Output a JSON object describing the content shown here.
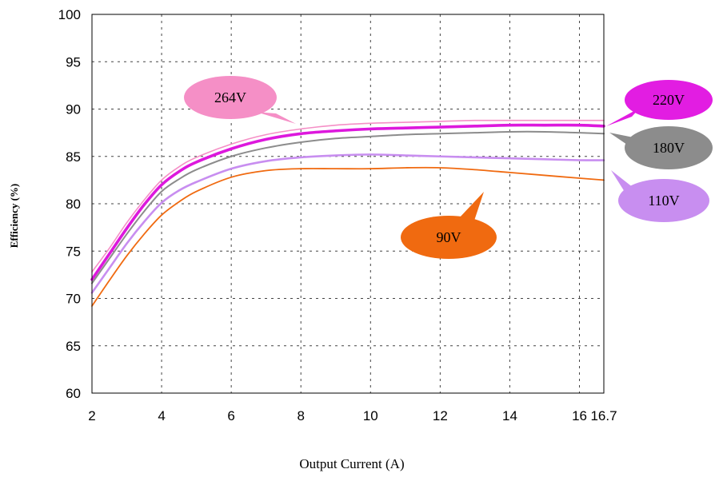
{
  "chart_data": {
    "type": "line",
    "title": "",
    "xlabel": "Output Current (A)",
    "ylabel": "Efficiency (%)",
    "xlim": [
      2,
      16.7
    ],
    "ylim": [
      60,
      100
    ],
    "x_ticks": [
      2,
      4,
      6,
      8,
      10,
      12,
      14,
      16,
      16.7
    ],
    "x_tick_labels": [
      "2",
      "4",
      "6",
      "8",
      "10",
      "12",
      "14",
      "16",
      "16.7"
    ],
    "y_ticks": [
      60,
      65,
      70,
      75,
      80,
      85,
      90,
      95,
      100
    ],
    "y_tick_labels": [
      "60",
      "65",
      "70",
      "75",
      "80",
      "85",
      "90",
      "95",
      "100"
    ],
    "grid": true,
    "series": [
      {
        "name": "264V",
        "color": "#f58fc6",
        "x": [
          2,
          2.5,
          3,
          3.5,
          4,
          4.5,
          5,
          6,
          7,
          8,
          9,
          10,
          11,
          12,
          13,
          14,
          15,
          16,
          16.7
        ],
        "y": [
          72.8,
          75.3,
          78.0,
          80.4,
          82.5,
          83.9,
          84.9,
          86.3,
          87.3,
          87.9,
          88.3,
          88.5,
          88.6,
          88.7,
          88.8,
          88.8,
          88.8,
          88.8,
          88.8
        ]
      },
      {
        "name": "220V",
        "color": "#dd18dd",
        "x": [
          2,
          2.5,
          3,
          3.5,
          4,
          4.5,
          5,
          6,
          7,
          8,
          9,
          10,
          11,
          12,
          13,
          14,
          15,
          16,
          16.7
        ],
        "y": [
          72.0,
          74.7,
          77.4,
          79.9,
          82.0,
          83.4,
          84.4,
          85.8,
          86.8,
          87.4,
          87.7,
          87.9,
          88.0,
          88.1,
          88.2,
          88.3,
          88.3,
          88.3,
          88.2
        ]
      },
      {
        "name": "180V",
        "color": "#8c8c8c",
        "x": [
          2,
          2.5,
          3,
          3.5,
          4,
          4.5,
          5,
          6,
          7,
          8,
          9,
          10,
          11,
          12,
          13,
          14,
          15,
          16,
          16.7
        ],
        "y": [
          71.6,
          74.2,
          76.8,
          79.2,
          81.3,
          82.6,
          83.6,
          85.0,
          85.9,
          86.5,
          86.9,
          87.1,
          87.3,
          87.4,
          87.5,
          87.6,
          87.6,
          87.5,
          87.4
        ]
      },
      {
        "name": "110V",
        "color": "#c88ef0",
        "x": [
          2,
          2.5,
          3,
          3.5,
          4,
          4.5,
          5,
          6,
          7,
          8,
          9,
          10,
          11,
          12,
          13,
          14,
          15,
          16,
          16.7
        ],
        "y": [
          70.6,
          73.2,
          75.8,
          78.1,
          80.1,
          81.4,
          82.3,
          83.7,
          84.5,
          84.9,
          85.1,
          85.2,
          85.1,
          85.0,
          84.9,
          84.8,
          84.7,
          84.6,
          84.6
        ]
      },
      {
        "name": "90V",
        "color": "#f06a10",
        "x": [
          2,
          2.5,
          3,
          3.5,
          4,
          4.5,
          5,
          6,
          7,
          8,
          9,
          10,
          11,
          12,
          13,
          14,
          15,
          16,
          16.7
        ],
        "y": [
          69.2,
          71.9,
          74.5,
          76.8,
          78.8,
          80.2,
          81.3,
          82.8,
          83.5,
          83.7,
          83.7,
          83.7,
          83.8,
          83.8,
          83.6,
          83.3,
          83.0,
          82.7,
          82.5
        ]
      }
    ],
    "annotations": [
      {
        "text": "264V",
        "color": "#f58fc6",
        "target": [
          8,
          87.9
        ]
      },
      {
        "text": "220V",
        "color": "#e21de2",
        "target": [
          16.7,
          88.2
        ]
      },
      {
        "text": "180V",
        "color": "#8c8c8c",
        "target": [
          16.7,
          87.4
        ]
      },
      {
        "text": "110V",
        "color": "#c88ef0",
        "target": [
          16.7,
          84.6
        ]
      },
      {
        "text": "90V",
        "color": "#f06a10",
        "target": [
          14,
          83.3
        ]
      }
    ]
  }
}
